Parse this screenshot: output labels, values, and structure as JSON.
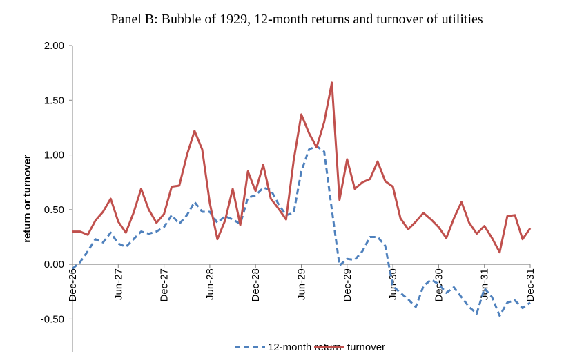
{
  "chart_data": {
    "type": "line",
    "title": "Panel B: Bubble of 1929, 12-month returns and turnover of utilities",
    "y_label": "return or turnover",
    "categories": [
      "Dec-26",
      null,
      null,
      null,
      null,
      null,
      "Jun-27",
      null,
      null,
      null,
      null,
      null,
      "Dec-27",
      null,
      null,
      null,
      null,
      null,
      "Jun-28",
      null,
      null,
      null,
      null,
      null,
      "Dec-28",
      null,
      null,
      null,
      null,
      null,
      "Jun-29",
      null,
      null,
      null,
      null,
      null,
      "Dec-29",
      null,
      null,
      null,
      null,
      null,
      "Jun-30",
      null,
      null,
      null,
      null,
      null,
      "Dec-30",
      null,
      null,
      null,
      null,
      null,
      "Jun-31",
      null,
      null,
      null,
      null,
      null,
      "Dec-31"
    ],
    "series": [
      {
        "name": "12-month return",
        "color": "#4f81bd",
        "dash": true,
        "values": [
          -0.04,
          0.02,
          0.12,
          0.23,
          0.2,
          0.29,
          0.19,
          0.16,
          0.23,
          0.3,
          0.28,
          0.3,
          0.34,
          0.45,
          0.37,
          0.45,
          0.57,
          0.48,
          0.48,
          0.38,
          0.44,
          0.41,
          0.37,
          0.61,
          0.63,
          0.7,
          0.68,
          0.55,
          0.45,
          0.47,
          0.85,
          1.05,
          1.08,
          1.03,
          0.5,
          -0.01,
          0.05,
          0.04,
          0.12,
          0.25,
          0.25,
          0.17,
          -0.2,
          -0.26,
          -0.32,
          -0.39,
          -0.2,
          -0.14,
          -0.18,
          -0.26,
          -0.21,
          -0.3,
          -0.39,
          -0.45,
          -0.22,
          -0.3,
          -0.47,
          -0.35,
          -0.33,
          -0.4,
          -0.35
        ]
      },
      {
        "name": "turnover",
        "color": "#c0504d",
        "dash": false,
        "values": [
          0.3,
          0.3,
          0.27,
          0.4,
          0.48,
          0.6,
          0.39,
          0.29,
          0.47,
          0.69,
          0.5,
          0.38,
          0.46,
          0.71,
          0.72,
          1.0,
          1.22,
          1.05,
          0.56,
          0.23,
          0.4,
          0.69,
          0.36,
          0.85,
          0.67,
          0.91,
          0.6,
          0.51,
          0.41,
          0.95,
          1.37,
          1.2,
          1.07,
          1.3,
          1.66,
          0.59,
          0.96,
          0.69,
          0.75,
          0.78,
          0.94,
          0.76,
          0.71,
          0.42,
          0.32,
          0.39,
          0.47,
          0.41,
          0.34,
          0.24,
          0.42,
          0.57,
          0.38,
          0.28,
          0.35,
          0.24,
          0.11,
          0.44,
          0.45,
          0.23,
          0.33
        ]
      }
    ],
    "ylim": [
      -0.8,
      2.0
    ],
    "yticks": [
      {
        "value": -0.5,
        "label": "-0.50"
      },
      {
        "value": 0,
        "label": "0.00"
      },
      {
        "value": 0.5,
        "label": "0.50"
      },
      {
        "value": 1,
        "label": "1.00"
      },
      {
        "value": 1.5,
        "label": "1.50"
      },
      {
        "value": 2,
        "label": "2.00"
      }
    ],
    "grid": false,
    "legend": "bottom"
  }
}
